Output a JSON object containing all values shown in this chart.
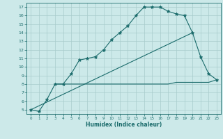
{
  "xlabel": "Humidex (Indice chaleur)",
  "bg_color": "#cce9e9",
  "line_color": "#1a6b6b",
  "grid_color": "#a8cccc",
  "line1_x": [
    0,
    1,
    2,
    3,
    4,
    5,
    6,
    7,
    8,
    9,
    10,
    11,
    12,
    13,
    14,
    15,
    16,
    17,
    18,
    19,
    20,
    21,
    22,
    23
  ],
  "line1_y": [
    5.0,
    4.8,
    6.2,
    8.0,
    8.0,
    9.2,
    10.8,
    11.0,
    11.2,
    12.0,
    13.2,
    14.0,
    14.8,
    16.0,
    17.0,
    17.0,
    17.0,
    16.5,
    16.2,
    16.0,
    14.0,
    11.2,
    9.2,
    8.5
  ],
  "line2_x": [
    0,
    20
  ],
  "line2_y": [
    5.0,
    14.0
  ],
  "line3_x": [
    3,
    4,
    5,
    6,
    7,
    8,
    9,
    10,
    11,
    12,
    13,
    14,
    15,
    16,
    17,
    18,
    19,
    20,
    21,
    22,
    23
  ],
  "line3_y": [
    8.0,
    8.0,
    8.0,
    8.0,
    8.0,
    8.0,
    8.0,
    8.0,
    8.0,
    8.0,
    8.0,
    8.0,
    8.0,
    8.0,
    8.0,
    8.2,
    8.2,
    8.2,
    8.2,
    8.2,
    8.5
  ],
  "ylim": [
    4.5,
    17.5
  ],
  "xlim": [
    -0.5,
    23.5
  ],
  "yticks": [
    5,
    6,
    7,
    8,
    9,
    10,
    11,
    12,
    13,
    14,
    15,
    16,
    17
  ],
  "xticks": [
    0,
    1,
    2,
    3,
    4,
    5,
    6,
    7,
    8,
    9,
    10,
    11,
    12,
    13,
    14,
    15,
    16,
    17,
    18,
    19,
    20,
    21,
    22,
    23
  ]
}
